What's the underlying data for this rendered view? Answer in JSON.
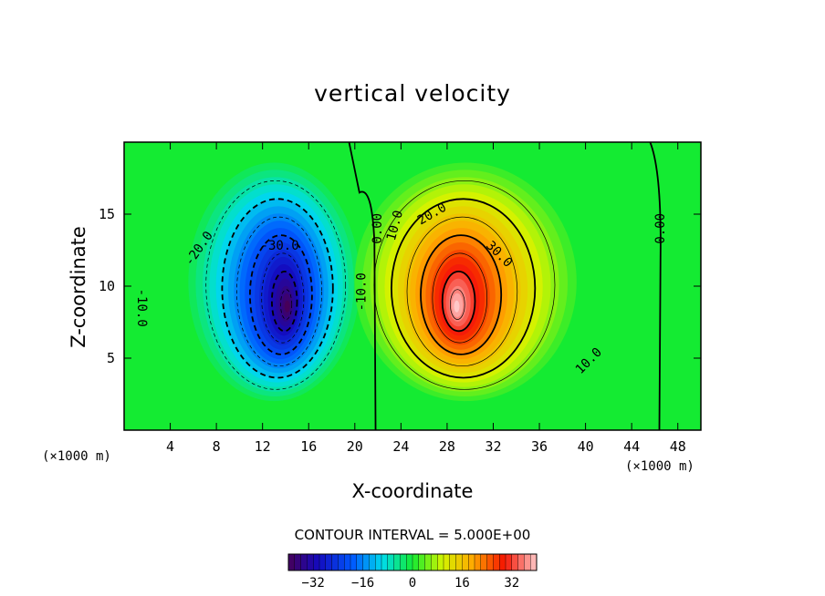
{
  "chart_data": {
    "type": "heatmap",
    "title": "vertical velocity",
    "xlabel": "X-coordinate",
    "ylabel": "Z-coordinate",
    "x_unit_left": "(×1000 m)",
    "x_unit_right": "(×1000 m)",
    "xlim": [
      0,
      50
    ],
    "ylim": [
      0,
      20
    ],
    "x_ticks": [
      {
        "value": 4,
        "label": "4"
      },
      {
        "value": 8,
        "label": "8"
      },
      {
        "value": 12,
        "label": "12"
      },
      {
        "value": 16,
        "label": "16"
      },
      {
        "value": 20,
        "label": "20"
      },
      {
        "value": 24,
        "label": "24"
      },
      {
        "value": 28,
        "label": "28"
      },
      {
        "value": 32,
        "label": "32"
      },
      {
        "value": 36,
        "label": "36"
      },
      {
        "value": 40,
        "label": "40"
      },
      {
        "value": 44,
        "label": "44"
      },
      {
        "value": 48,
        "label": "48"
      }
    ],
    "y_ticks": [
      {
        "value": 5,
        "label": "5"
      },
      {
        "value": 10,
        "label": "10"
      },
      {
        "value": 15,
        "label": "15"
      }
    ],
    "contour_interval_text": "CONTOUR INTERVAL = 5.000E+00",
    "extrema": [
      {
        "name": "downdraft-minimum",
        "x": 14.2,
        "z": 8.5,
        "value": -40
      },
      {
        "name": "updraft-maximum",
        "x": 28.8,
        "z": 8.5,
        "value": 40
      }
    ],
    "contour_labels": [
      {
        "text": "-20.0",
        "x": 6.5,
        "z": 12.6,
        "rotate": -55
      },
      {
        "text": "-30.0",
        "x": 13.5,
        "z": 12.8,
        "rotate": 0
      },
      {
        "text": "-10.0",
        "x": 1.5,
        "z": 8.5,
        "rotate": 90
      },
      {
        "text": "-10.0",
        "x": 20.6,
        "z": 9.6,
        "rotate": -90
      },
      {
        "text": "0.00",
        "x": 22.0,
        "z": 14.0,
        "rotate": -90
      },
      {
        "text": "10.0",
        "x": 23.5,
        "z": 14.2,
        "rotate": -75
      },
      {
        "text": "20.0",
        "x": 26.7,
        "z": 15.0,
        "rotate": -30
      },
      {
        "text": "30.0",
        "x": 32.5,
        "z": 12.2,
        "rotate": 45
      },
      {
        "text": "10.0",
        "x": 40.3,
        "z": 4.8,
        "rotate": -45
      },
      {
        "text": "0.00",
        "x": 46.5,
        "z": 14.0,
        "rotate": -90
      }
    ],
    "colorbar": {
      "min": -40,
      "max": 40,
      "tick_labels": [
        {
          "value": -32,
          "label": "−32"
        },
        {
          "value": -16,
          "label": "−16"
        },
        {
          "value": 0,
          "label": "0"
        },
        {
          "value": 16,
          "label": "16"
        },
        {
          "value": 32,
          "label": "32"
        }
      ]
    }
  }
}
